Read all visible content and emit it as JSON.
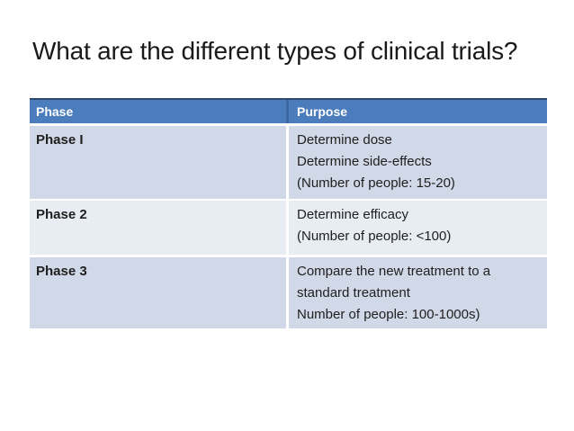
{
  "slide": {
    "title": "What are the different types of clinical trials?",
    "table": {
      "headers": [
        "Phase",
        "Purpose"
      ],
      "rows": [
        {
          "phase": "Phase I",
          "purpose_lines": [
            "Determine dose",
            "Determine side-effects",
            "(Number of people: 15-20)"
          ]
        },
        {
          "phase": "Phase 2",
          "purpose_lines": [
            "Determine efficacy",
            "(Number of people: <100)"
          ]
        },
        {
          "phase": "Phase 3",
          "purpose_lines": [
            "Compare the new treatment to a",
            "standard treatment",
            "Number of people: 100-1000s)"
          ]
        }
      ]
    },
    "colors": {
      "header_bg": "#4b7cbb",
      "header_top_border": "#2c4a6e",
      "header_divider": "#3c68a1",
      "row_band_dark": "#d1d8e7",
      "row_band_light": "#e8edf4",
      "row_separator": "#ffffff",
      "header_text": "#ffffff",
      "body_text": "#202020",
      "title_text": "#1a1a1a",
      "background": "#ffffff"
    }
  }
}
